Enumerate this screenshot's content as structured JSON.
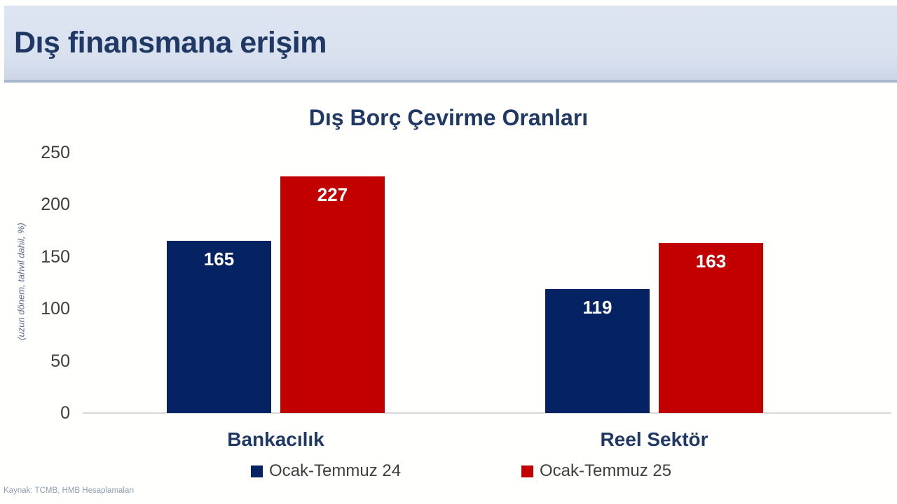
{
  "header": {
    "title": "Dış finansmana erişim"
  },
  "source": "Kaynak: TCMB, HMB Hesaplamaları",
  "chart_data": {
    "type": "bar",
    "title": "Dış Borç Çevirme Oranları",
    "ylabel": "(uzun dönem, tahvil dahil, %)",
    "categories": [
      "Bankacılık",
      "Reel Sektör"
    ],
    "series": [
      {
        "name": "Ocak-Temmuz 24",
        "color": "#052363",
        "values": [
          165,
          119
        ]
      },
      {
        "name": "Ocak-Temmuz 25",
        "color": "#c20000",
        "values": [
          227,
          163
        ]
      }
    ],
    "ylim": [
      0,
      250
    ],
    "yticks": [
      0,
      50,
      100,
      150,
      200,
      250
    ],
    "grid": false,
    "data_labels": true,
    "legend_position": "bottom"
  }
}
